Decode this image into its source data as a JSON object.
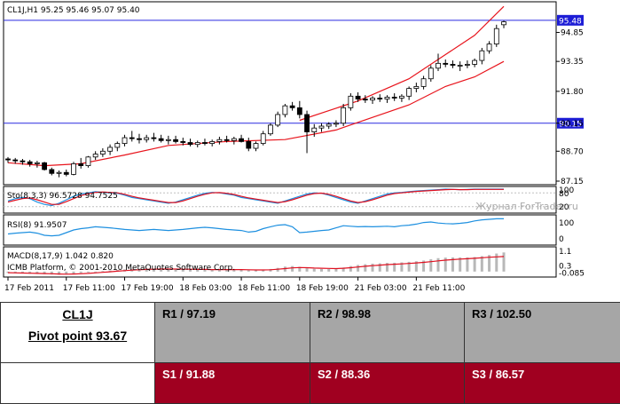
{
  "chart_data": {
    "type": "candlestick",
    "header": "CL1J,H1  95.25 95.46 95.07 95.40",
    "watermark": "Журнал ForTrader.ru",
    "copyright": "ICMB Platform, © 2001-2010 MetaQuotes Software Corp.",
    "price_ticks": [
      "94.85",
      "93.35",
      "91.80",
      "90.15",
      "88.70",
      "87.15"
    ],
    "price_range": [
      87.15,
      96.3
    ],
    "hlines": [
      {
        "label": "95.48",
        "value": 95.48
      },
      {
        "label": "90.15",
        "value": 90.15
      }
    ],
    "x_ticks": [
      "17 Feb 2011",
      "17 Feb 11:00",
      "17 Feb 19:00",
      "18 Feb 03:00",
      "18 Feb 11:00",
      "18 Feb 19:00",
      "21 Feb 03:00",
      "21 Feb 11:00"
    ],
    "candles": [
      [
        88.3,
        88.4,
        88.1,
        88.25
      ],
      [
        88.25,
        88.35,
        88.05,
        88.2
      ],
      [
        88.2,
        88.3,
        88.0,
        88.15
      ],
      [
        88.15,
        88.25,
        87.9,
        88.05
      ],
      [
        88.05,
        88.2,
        87.85,
        88.1
      ],
      [
        88.1,
        88.15,
        87.7,
        87.75
      ],
      [
        87.75,
        87.85,
        87.45,
        87.55
      ],
      [
        87.55,
        87.7,
        87.35,
        87.6
      ],
      [
        87.6,
        87.75,
        87.4,
        87.5
      ],
      [
        87.5,
        88.15,
        87.45,
        88.05
      ],
      [
        88.05,
        88.35,
        87.8,
        87.95
      ],
      [
        87.95,
        88.45,
        87.85,
        88.4
      ],
      [
        88.4,
        88.7,
        88.25,
        88.55
      ],
      [
        88.55,
        88.85,
        88.4,
        88.7
      ],
      [
        88.7,
        89.05,
        88.5,
        88.9
      ],
      [
        88.9,
        89.2,
        88.7,
        89.1
      ],
      [
        89.1,
        89.55,
        88.95,
        89.4
      ],
      [
        89.4,
        89.75,
        89.2,
        89.35
      ],
      [
        89.35,
        89.6,
        89.1,
        89.3
      ],
      [
        89.3,
        89.55,
        89.15,
        89.4
      ],
      [
        89.4,
        89.65,
        89.2,
        89.35
      ],
      [
        89.35,
        89.55,
        89.15,
        89.25
      ],
      [
        89.25,
        89.5,
        89.05,
        89.3
      ],
      [
        89.3,
        89.5,
        89.1,
        89.2
      ],
      [
        89.2,
        89.4,
        89.0,
        89.15
      ],
      [
        89.15,
        89.35,
        88.95,
        89.05
      ],
      [
        89.05,
        89.25,
        88.9,
        89.15
      ],
      [
        89.15,
        89.35,
        89.0,
        89.1
      ],
      [
        89.1,
        89.3,
        88.95,
        89.2
      ],
      [
        89.2,
        89.45,
        89.05,
        89.3
      ],
      [
        89.3,
        89.5,
        89.15,
        89.25
      ],
      [
        89.25,
        89.45,
        89.05,
        89.35
      ],
      [
        89.35,
        89.55,
        89.15,
        89.2
      ],
      [
        89.2,
        89.4,
        88.7,
        88.85
      ],
      [
        88.85,
        89.2,
        88.7,
        89.1
      ],
      [
        89.1,
        89.75,
        89.0,
        89.6
      ],
      [
        89.6,
        90.15,
        89.5,
        90.05
      ],
      [
        90.05,
        90.75,
        89.95,
        90.6
      ],
      [
        90.6,
        91.15,
        90.45,
        91.05
      ],
      [
        91.05,
        91.25,
        90.8,
        90.95
      ],
      [
        90.95,
        91.3,
        90.4,
        90.6
      ],
      [
        90.6,
        90.8,
        88.6,
        89.7
      ],
      [
        89.7,
        90.1,
        89.45,
        89.9
      ],
      [
        89.9,
        90.15,
        89.7,
        90.0
      ],
      [
        90.0,
        90.2,
        89.85,
        90.1
      ],
      [
        90.1,
        90.3,
        89.95,
        90.15
      ],
      [
        90.15,
        91.15,
        90.0,
        90.95
      ],
      [
        90.95,
        91.7,
        90.8,
        91.55
      ],
      [
        91.55,
        91.75,
        91.25,
        91.4
      ],
      [
        91.4,
        91.6,
        91.2,
        91.35
      ],
      [
        91.35,
        91.55,
        91.15,
        91.45
      ],
      [
        91.45,
        91.65,
        91.25,
        91.4
      ],
      [
        91.4,
        91.6,
        91.2,
        91.5
      ],
      [
        91.5,
        91.7,
        91.3,
        91.45
      ],
      [
        91.45,
        91.65,
        91.25,
        91.55
      ],
      [
        91.55,
        92.05,
        91.35,
        91.95
      ],
      [
        91.95,
        92.25,
        91.75,
        92.05
      ],
      [
        92.05,
        92.6,
        91.9,
        92.45
      ],
      [
        92.45,
        93.15,
        92.3,
        93.0
      ],
      [
        93.0,
        93.75,
        92.85,
        93.25
      ],
      [
        93.25,
        93.45,
        93.05,
        93.2
      ],
      [
        93.2,
        93.4,
        93.0,
        93.15
      ],
      [
        93.15,
        93.35,
        92.85,
        93.15
      ],
      [
        93.15,
        93.4,
        93.0,
        93.2
      ],
      [
        93.2,
        93.5,
        93.05,
        93.4
      ],
      [
        93.4,
        94.05,
        93.2,
        93.9
      ],
      [
        93.9,
        94.4,
        93.75,
        94.25
      ],
      [
        94.25,
        95.25,
        94.1,
        95.05
      ],
      [
        95.25,
        95.46,
        95.07,
        95.4
      ]
    ],
    "ma_upper": [
      [
        40,
        90.3
      ],
      [
        48,
        91.3
      ],
      [
        55,
        92.45
      ],
      [
        60,
        93.7
      ],
      [
        64,
        94.7
      ],
      [
        68,
        96.2
      ]
    ],
    "ma_lower": [
      [
        0,
        88.1
      ],
      [
        5,
        87.95
      ],
      [
        10,
        88.05
      ],
      [
        16,
        88.5
      ],
      [
        22,
        89.0
      ],
      [
        30,
        89.2
      ],
      [
        38,
        89.3
      ],
      [
        45,
        89.8
      ],
      [
        50,
        90.45
      ],
      [
        55,
        91.1
      ],
      [
        60,
        92.05
      ],
      [
        64,
        92.55
      ],
      [
        68,
        93.35
      ]
    ],
    "stoch": {
      "label": "Sto(8,3,3) 96.5728 94.7525",
      "ticks": [
        "100",
        "80",
        "20"
      ],
      "main": [
        45,
        55,
        60,
        55,
        40,
        30,
        25,
        35,
        50,
        65,
        75,
        80,
        85,
        82,
        80,
        78,
        70,
        60,
        55,
        50,
        45,
        40,
        35,
        40,
        50,
        60,
        70,
        78,
        82,
        80,
        75,
        70,
        60,
        55,
        50,
        45,
        40,
        35,
        45,
        55,
        65,
        75,
        80,
        78,
        70,
        60,
        50,
        40,
        35,
        45,
        55,
        65,
        75,
        80,
        82,
        85,
        88,
        90,
        92,
        94,
        96,
        95,
        94,
        95,
        96,
        96,
        96,
        96,
        96
      ],
      "signal": [
        40,
        48,
        55,
        58,
        50,
        40,
        30,
        30,
        42,
        55,
        68,
        76,
        82,
        84,
        82,
        80,
        74,
        65,
        58,
        53,
        48,
        43,
        38,
        38,
        45,
        55,
        65,
        74,
        80,
        81,
        78,
        73,
        65,
        58,
        53,
        48,
        43,
        38,
        42,
        50,
        60,
        70,
        77,
        79,
        74,
        65,
        55,
        45,
        38,
        42,
        50,
        60,
        70,
        77,
        80,
        83,
        86,
        88,
        90,
        92,
        94,
        95,
        94,
        94,
        95,
        95,
        95,
        95,
        95
      ]
    },
    "rsi": {
      "label": "RSI(8) 91.9507",
      "ticks": [
        "100",
        "0"
      ],
      "values": [
        35,
        38,
        40,
        42,
        38,
        30,
        28,
        30,
        40,
        50,
        55,
        58,
        62,
        60,
        58,
        55,
        52,
        50,
        48,
        50,
        52,
        50,
        48,
        50,
        52,
        55,
        58,
        60,
        58,
        55,
        52,
        50,
        48,
        42,
        45,
        55,
        62,
        68,
        70,
        62,
        40,
        42,
        45,
        48,
        50,
        58,
        66,
        64,
        62,
        63,
        62,
        63,
        64,
        62,
        66,
        68,
        72,
        78,
        80,
        76,
        74,
        73,
        75,
        78,
        84,
        88,
        90,
        92,
        92
      ]
    },
    "macd": {
      "label": "MACD(8,17,9) 1.042 0.820",
      "ticks": [
        "1.1",
        "0.3",
        "-0.085"
      ],
      "values": [
        -0.08,
        -0.09,
        -0.1,
        -0.12,
        -0.13,
        -0.14,
        -0.16,
        -0.17,
        -0.15,
        -0.12,
        -0.08,
        -0.05,
        0.0,
        0.03,
        0.06,
        0.09,
        0.12,
        0.15,
        0.16,
        0.16,
        0.16,
        0.15,
        0.14,
        0.13,
        0.12,
        0.11,
        0.1,
        0.1,
        0.1,
        0.1,
        0.11,
        0.12,
        0.11,
        0.08,
        0.07,
        0.1,
        0.14,
        0.2,
        0.27,
        0.3,
        0.26,
        0.18,
        0.15,
        0.14,
        0.14,
        0.15,
        0.22,
        0.3,
        0.36,
        0.4,
        0.43,
        0.45,
        0.47,
        0.48,
        0.5,
        0.53,
        0.56,
        0.6,
        0.67,
        0.73,
        0.76,
        0.77,
        0.77,
        0.77,
        0.79,
        0.84,
        0.9,
        0.98,
        1.04
      ],
      "signal": [
        -0.06,
        -0.07,
        -0.08,
        -0.09,
        -0.1,
        -0.11,
        -0.12,
        -0.13,
        -0.14,
        -0.13,
        -0.12,
        -0.1,
        -0.07,
        -0.04,
        -0.01,
        0.02,
        0.05,
        0.08,
        0.1,
        0.12,
        0.13,
        0.14,
        0.14,
        0.14,
        0.13,
        0.13,
        0.12,
        0.12,
        0.11,
        0.11,
        0.11,
        0.11,
        0.11,
        0.1,
        0.09,
        0.09,
        0.1,
        0.13,
        0.16,
        0.2,
        0.22,
        0.21,
        0.19,
        0.18,
        0.17,
        0.16,
        0.18,
        0.21,
        0.25,
        0.29,
        0.32,
        0.35,
        0.38,
        0.4,
        0.42,
        0.44,
        0.47,
        0.5,
        0.54,
        0.58,
        0.62,
        0.65,
        0.68,
        0.7,
        0.72,
        0.75,
        0.78,
        0.8,
        0.82
      ]
    }
  },
  "table": {
    "symbol": "CL1J",
    "pivot": "Pivot point 93.67",
    "r1": "R1 / 97.19",
    "r2": "R2  / 98.98",
    "r3": "R3 / 102.50",
    "s1": "S1 / 91.88",
    "s2": "S2 / 88.36",
    "s3": "S3 / 86.57"
  }
}
